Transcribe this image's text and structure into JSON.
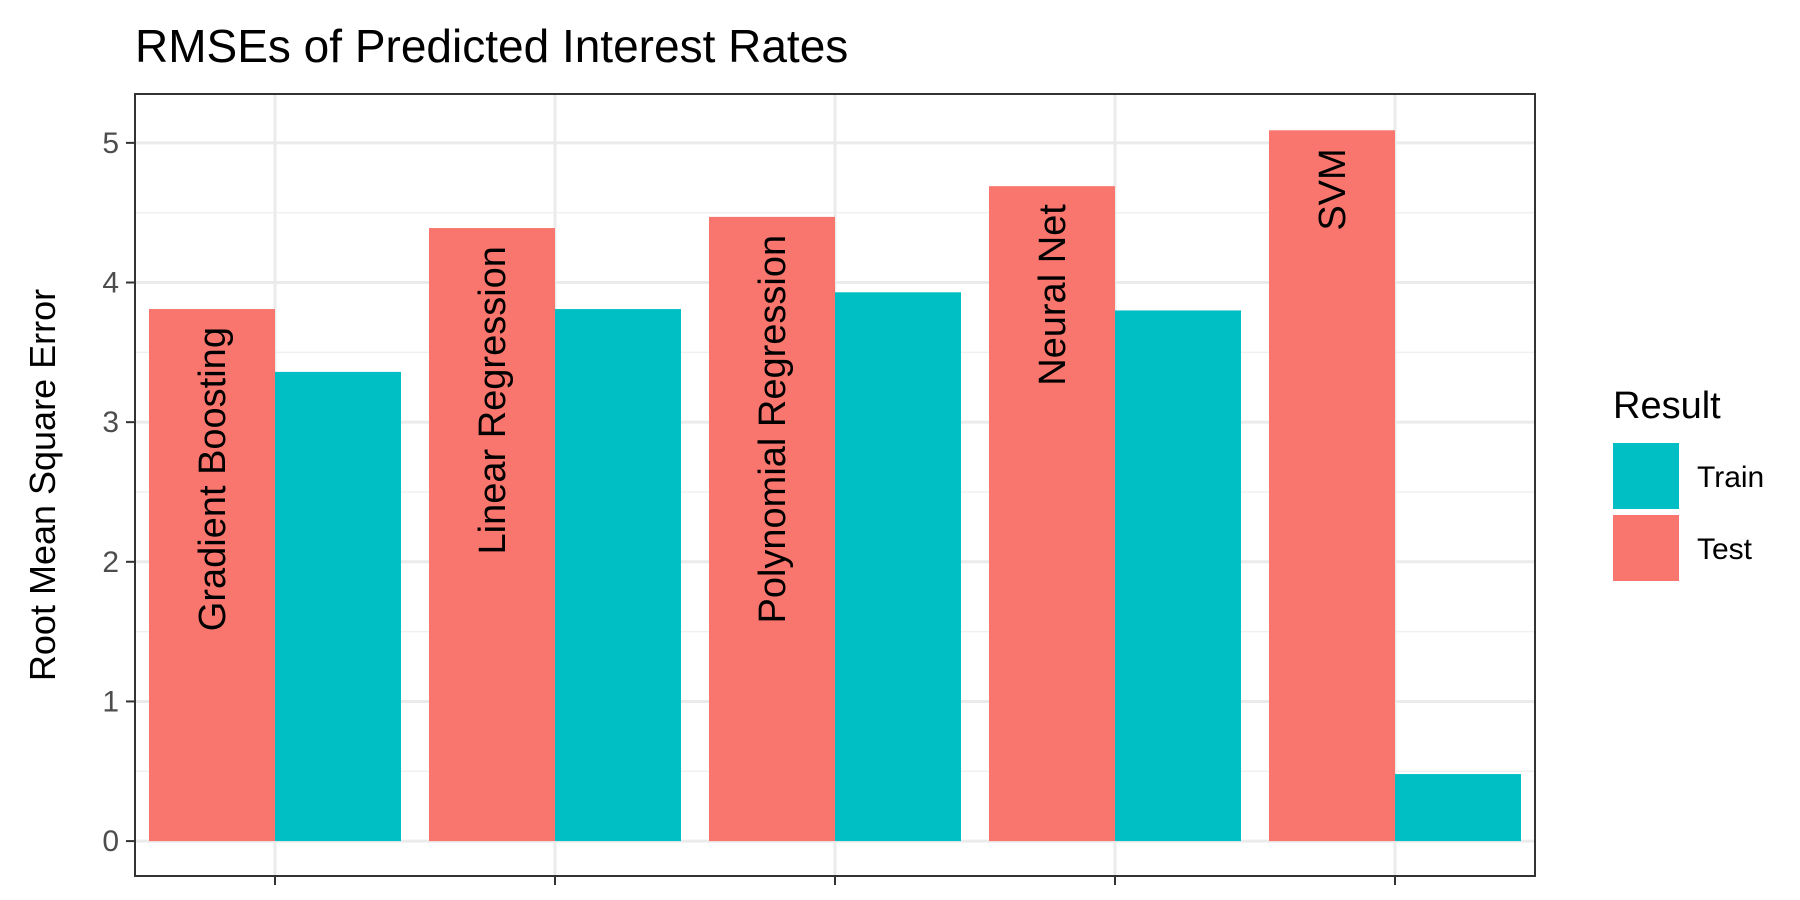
{
  "chart_data": {
    "type": "bar",
    "title": "RMSEs of Predicted Interest Rates",
    "xlabel": "",
    "ylabel": "Root Mean Square Error",
    "ylim": [
      -0.25,
      5.35
    ],
    "yticks": [
      0,
      1,
      2,
      3,
      4,
      5
    ],
    "tick_labels": [
      "0",
      "1",
      "2",
      "3",
      "4",
      "5"
    ],
    "grid": true,
    "legend_position": "right",
    "legend_title": "Result",
    "categories": [
      "Gradient Boosting",
      "Linear Regression",
      "Polynomial Regression",
      "Neural Net",
      "SVM"
    ],
    "series": [
      {
        "name": "Train",
        "color": "#00BFC4",
        "values": [
          3.36,
          3.81,
          3.93,
          3.8,
          0.48
        ]
      },
      {
        "name": "Test",
        "color": "#F8766D",
        "values": [
          3.81,
          4.39,
          4.47,
          4.69,
          5.09
        ]
      }
    ],
    "bar_labels": [
      "Gradient Boosting",
      "Linear Regression",
      "Polynomial Regression",
      "Neural Net",
      "SVM"
    ]
  }
}
